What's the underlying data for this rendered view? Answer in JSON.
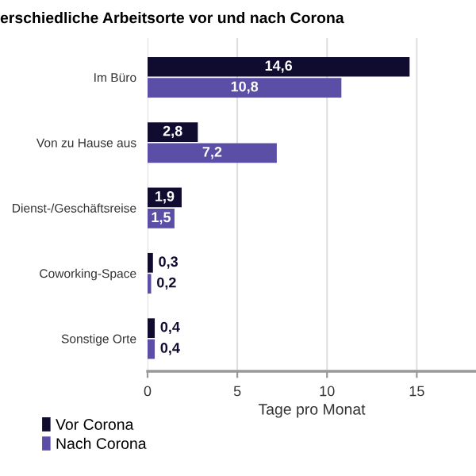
{
  "chart_data": {
    "type": "bar",
    "orientation": "horizontal",
    "title": "erschiedliche Arbeitsorte vor und nach Corona",
    "xlabel": "Tage pro Monat",
    "categories": [
      "Im Büro",
      "Von zu Hause aus",
      "Dienst-/Geschäftsreise",
      "Coworking-Space",
      "Sonstige Orte"
    ],
    "series": [
      {
        "name": "Vor Corona",
        "color": "#100c30",
        "values": [
          14.6,
          2.8,
          1.9,
          0.3,
          0.4
        ],
        "value_labels": [
          "14,6",
          "2,8",
          "1,9",
          "0,3",
          "0,4"
        ]
      },
      {
        "name": "Nach Corona",
        "color": "#5a4ea6",
        "values": [
          10.8,
          7.2,
          1.5,
          0.2,
          0.4
        ],
        "value_labels": [
          "10,8",
          "7,2",
          "1,5",
          "0,2",
          "0,4"
        ]
      }
    ],
    "xlim": [
      0,
      18.3
    ],
    "xticks": [
      0,
      5,
      10,
      15
    ],
    "grid": "x",
    "legend": "bottom left"
  }
}
